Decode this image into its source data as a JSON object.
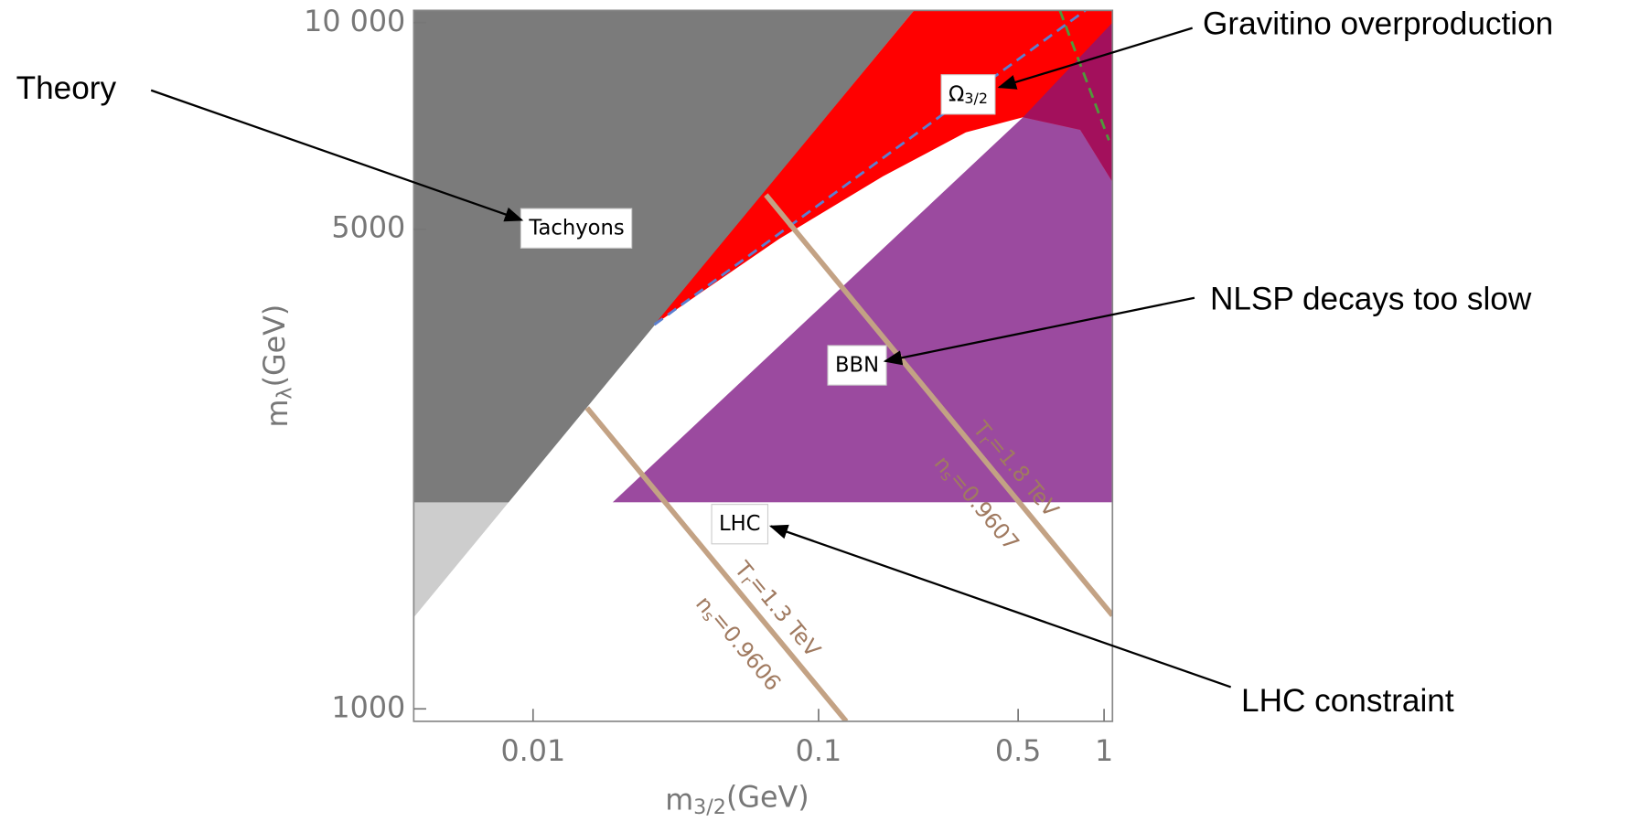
{
  "chart_data": {
    "type": "region",
    "xscale": "log",
    "yscale": "log",
    "xlabel": {
      "base": "m",
      "sub": "3/2",
      "rest": "(GeV)"
    },
    "ylabel": {
      "base": "m",
      "sub": "λ",
      "rest": "(GeV)"
    },
    "xlim": [
      0.00382,
      1.07
    ],
    "ylim": [
      959,
      10420
    ],
    "xticks": [
      0.01,
      0.1,
      0.5,
      1
    ],
    "yticks": [
      1000,
      5000,
      {
        "value": 10000,
        "label": "10 000"
      }
    ],
    "regions": [
      {
        "label": {
          "base": "Tachyons"
        },
        "color": "#7b7b7b",
        "x": [
          0.00382,
          0.216,
          0.00382
        ],
        "y": [
          1359,
          10420,
          10420
        ]
      },
      {
        "label": {
          "base": "Ω",
          "sub": "3/2"
        },
        "color": "#ff0000",
        "x": [
          0.0266,
          0.216,
          1.07,
          1.07,
          0.52,
          0.328,
          0.168,
          0.0728
        ],
        "y": [
          3630,
          10420,
          10420,
          5860,
          7280,
          6920,
          5970,
          4840
        ]
      },
      {
        "color": "#a3105c",
        "x": [
          0.52,
          1.07,
          1.07,
          0.825
        ],
        "y": [
          7280,
          10000,
          5860,
          6980
        ]
      },
      {
        "label": {
          "base": "BBN"
        },
        "color": "#9b4a9f",
        "x": [
          0.019,
          0.52,
          0.825,
          1.07,
          1.07
        ],
        "y": [
          2000,
          7280,
          6980,
          5860,
          2000
        ]
      },
      {
        "label": {
          "base": "LHC"
        },
        "color": "#ffffff",
        "opacity": 0.62,
        "x": [
          0.00382,
          1.07,
          1.07,
          0.00382
        ],
        "y": [
          959,
          959,
          2000,
          2000
        ]
      }
    ],
    "lines": [
      {
        "color": "#5a7fd0",
        "dash": true,
        "x": [
          0.0266,
          0.86
        ],
        "y": [
          3630,
          10420
        ]
      },
      {
        "color": "#4f9a3a",
        "dash": true,
        "x": [
          0.7,
          1.04
        ],
        "y": [
          10420,
          6740
        ]
      },
      {
        "color": "#c3a284",
        "x": [
          0.01545,
          0.125
        ],
        "y": [
          2746,
          959
        ],
        "label1": {
          "base": "T",
          "sub": "r",
          "rest": "=1.3 TeV"
        },
        "label2": {
          "base": "n",
          "sub": "s",
          "rest": "=0.9606"
        }
      },
      {
        "color": "#c3a284",
        "x": [
          0.0654,
          1.07
        ],
        "y": [
          5610,
          1368
        ],
        "label1": {
          "base": "T",
          "sub": "r",
          "rest": "=1.8 TeV"
        },
        "label2": {
          "base": "n",
          "sub": "s",
          "rest": "=0.9607"
        }
      }
    ],
    "annotations": [
      "Theory",
      "Gravitino overproduction",
      "NLSP decays too slow",
      "LHC constraint"
    ]
  }
}
